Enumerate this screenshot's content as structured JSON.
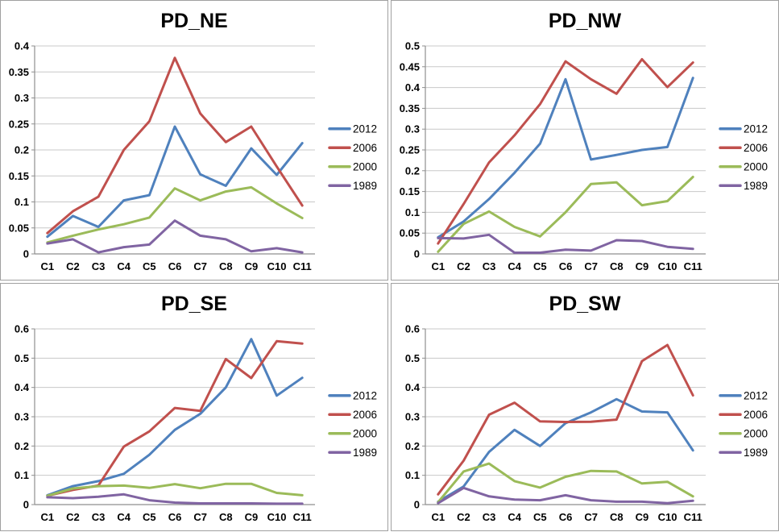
{
  "palette": {
    "background": "#ffffff",
    "panel_border": "#a0a0a0",
    "gridline": "#c8c8c8",
    "axis": "#8f8f8f",
    "text": "#000000",
    "series_2012": "#4f81bd",
    "series_2006": "#c0504d",
    "series_2000": "#9bbb59",
    "series_1989": "#8064a2"
  },
  "legend": {
    "position": "right",
    "labels": [
      "2012",
      "2006",
      "2000",
      "1989"
    ]
  },
  "chart_data": [
    {
      "type": "line",
      "title": "PD_NE",
      "grid": true,
      "legend_position": "right",
      "categories": [
        "C1",
        "C2",
        "C3",
        "C4",
        "C5",
        "C6",
        "C7",
        "C8",
        "C9",
        "C10",
        "C11"
      ],
      "ylim": [
        0,
        0.4
      ],
      "ystep": 0.05,
      "yticks": [
        "0",
        "0.05",
        "0.1",
        "0.15",
        "0.2",
        "0.25",
        "0.3",
        "0.35",
        "0.4"
      ],
      "series": [
        {
          "name": "2012",
          "color": "#4f81bd",
          "values": [
            0.033,
            0.073,
            0.052,
            0.103,
            0.113,
            0.245,
            0.153,
            0.131,
            0.203,
            0.152,
            0.213
          ]
        },
        {
          "name": "2006",
          "color": "#c0504d",
          "values": [
            0.04,
            0.082,
            0.11,
            0.2,
            0.255,
            0.377,
            0.27,
            0.215,
            0.245,
            0.168,
            0.093
          ]
        },
        {
          "name": "2000",
          "color": "#9bbb59",
          "values": [
            0.022,
            0.035,
            0.047,
            0.057,
            0.07,
            0.126,
            0.103,
            0.12,
            0.128,
            0.097,
            0.069
          ]
        },
        {
          "name": "1989",
          "color": "#8064a2",
          "values": [
            0.02,
            0.028,
            0.003,
            0.013,
            0.018,
            0.064,
            0.035,
            0.028,
            0.005,
            0.011,
            0.003
          ]
        }
      ]
    },
    {
      "type": "line",
      "title": "PD_NW",
      "grid": true,
      "legend_position": "right",
      "categories": [
        "C1",
        "C2",
        "C3",
        "C4",
        "C5",
        "C6",
        "C7",
        "C8",
        "C9",
        "C10",
        "C11"
      ],
      "ylim": [
        0,
        0.5
      ],
      "ystep": 0.05,
      "yticks": [
        "0",
        "0.05",
        "0.1",
        "0.15",
        "0.2",
        "0.25",
        "0.3",
        "0.35",
        "0.4",
        "0.45",
        "0.5"
      ],
      "series": [
        {
          "name": "2012",
          "color": "#4f81bd",
          "values": [
            0.04,
            0.078,
            0.132,
            0.195,
            0.265,
            0.42,
            0.227,
            0.238,
            0.25,
            0.257,
            0.423
          ]
        },
        {
          "name": "2006",
          "color": "#c0504d",
          "values": [
            0.025,
            0.12,
            0.22,
            0.285,
            0.36,
            0.463,
            0.42,
            0.385,
            0.468,
            0.401,
            0.46
          ]
        },
        {
          "name": "2000",
          "color": "#9bbb59",
          "values": [
            0.005,
            0.072,
            0.102,
            0.065,
            0.042,
            0.1,
            0.168,
            0.172,
            0.117,
            0.127,
            0.185
          ]
        },
        {
          "name": "1989",
          "color": "#8064a2",
          "values": [
            0.038,
            0.037,
            0.046,
            0.003,
            0.003,
            0.01,
            0.008,
            0.033,
            0.031,
            0.017,
            0.012
          ]
        }
      ]
    },
    {
      "type": "line",
      "title": "PD_SE",
      "grid": true,
      "legend_position": "right",
      "categories": [
        "C1",
        "C2",
        "C3",
        "C4",
        "C5",
        "C6",
        "C7",
        "C8",
        "C9",
        "C10",
        "C11"
      ],
      "ylim": [
        0,
        0.6
      ],
      "ystep": 0.1,
      "yticks": [
        "0",
        "0.1",
        "0.2",
        "0.3",
        "0.4",
        "0.5",
        "0.6"
      ],
      "series": [
        {
          "name": "2012",
          "color": "#4f81bd",
          "values": [
            0.032,
            0.063,
            0.08,
            0.105,
            0.17,
            0.255,
            0.31,
            0.4,
            0.565,
            0.372,
            0.433
          ]
        },
        {
          "name": "2006",
          "color": "#c0504d",
          "values": [
            0.03,
            0.05,
            0.065,
            0.198,
            0.25,
            0.33,
            0.32,
            0.497,
            0.432,
            0.558,
            0.55
          ]
        },
        {
          "name": "2000",
          "color": "#9bbb59",
          "values": [
            0.03,
            0.055,
            0.063,
            0.065,
            0.057,
            0.07,
            0.056,
            0.071,
            0.071,
            0.04,
            0.032
          ]
        },
        {
          "name": "1989",
          "color": "#8064a2",
          "values": [
            0.025,
            0.022,
            0.027,
            0.035,
            0.015,
            0.007,
            0.004,
            0.004,
            0.004,
            0.003,
            0.003
          ]
        }
      ]
    },
    {
      "type": "line",
      "title": "PD_SW",
      "grid": true,
      "legend_position": "right",
      "categories": [
        "C1",
        "C2",
        "C3",
        "C4",
        "C5",
        "C6",
        "C7",
        "C8",
        "C9",
        "C10",
        "C11"
      ],
      "ylim": [
        0,
        0.6
      ],
      "ystep": 0.1,
      "yticks": [
        "0",
        "0.1",
        "0.2",
        "0.3",
        "0.4",
        "0.5",
        "0.6"
      ],
      "series": [
        {
          "name": "2012",
          "color": "#4f81bd",
          "values": [
            0.01,
            0.062,
            0.18,
            0.255,
            0.2,
            0.278,
            0.315,
            0.36,
            0.318,
            0.315,
            0.185
          ]
        },
        {
          "name": "2006",
          "color": "#c0504d",
          "values": [
            0.035,
            0.15,
            0.307,
            0.348,
            0.284,
            0.282,
            0.283,
            0.29,
            0.49,
            0.545,
            0.373
          ]
        },
        {
          "name": "2000",
          "color": "#9bbb59",
          "values": [
            0.008,
            0.113,
            0.14,
            0.08,
            0.058,
            0.095,
            0.115,
            0.113,
            0.072,
            0.078,
            0.028
          ]
        },
        {
          "name": "1989",
          "color": "#8064a2",
          "values": [
            0.005,
            0.057,
            0.028,
            0.017,
            0.015,
            0.032,
            0.015,
            0.01,
            0.01,
            0.005,
            0.013
          ]
        }
      ]
    }
  ]
}
